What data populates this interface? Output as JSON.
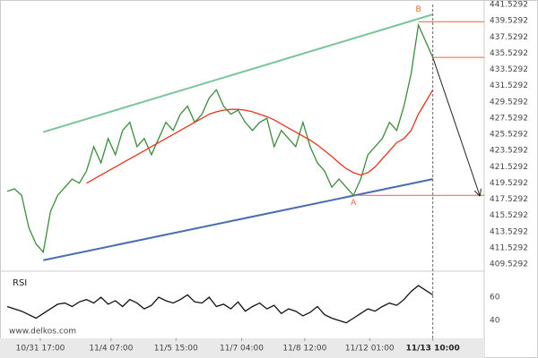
{
  "chart_data": [
    {
      "type": "line",
      "x": [
        0,
        1,
        2,
        3,
        4,
        5,
        6,
        7,
        8,
        9,
        10,
        11,
        12,
        13,
        14,
        15,
        16,
        17,
        18,
        19,
        20,
        21,
        22,
        23,
        24,
        25,
        26,
        27,
        28,
        29,
        30,
        31,
        32,
        33,
        34,
        35,
        36,
        37,
        38,
        39,
        40,
        41,
        42,
        43,
        44,
        45,
        46,
        47,
        48,
        49,
        50,
        51,
        52,
        53,
        54,
        55,
        56,
        57,
        58,
        59
      ],
      "series": [
        {
          "color": "#3b8c3b",
          "values": [
            418.5,
            418.8,
            418,
            414,
            412,
            411,
            416,
            418,
            419,
            420,
            419.5,
            421,
            424,
            422,
            425,
            423,
            426,
            427,
            424,
            425,
            423,
            425,
            427,
            426,
            428,
            429,
            427,
            428,
            430,
            431,
            429,
            428,
            428.5,
            427,
            426,
            427,
            427.5,
            424,
            426,
            425,
            424,
            427,
            424,
            422,
            421,
            419,
            420,
            419,
            418,
            420,
            423,
            424,
            425,
            427,
            426,
            429,
            433,
            439,
            437,
            435
          ]
        },
        {
          "color": "#e8341c",
          "values": [
            null,
            null,
            null,
            null,
            null,
            null,
            null,
            null,
            null,
            null,
            null,
            419.5,
            420,
            420.5,
            421,
            421.5,
            422,
            422.5,
            423,
            423.5,
            424,
            424.5,
            425,
            425.5,
            426,
            426.5,
            427,
            427.5,
            428,
            428.3,
            428.5,
            428.6,
            428.6,
            428.5,
            428.3,
            428,
            427.7,
            427.3,
            426.8,
            426.3,
            425.8,
            425.3,
            424.8,
            424.2,
            423.5,
            422.8,
            422,
            421.3,
            420.8,
            420.5,
            420.8,
            421.5,
            422.5,
            423.5,
            424.5,
            425,
            426,
            428,
            429.5,
            431
          ]
        }
      ],
      "trend_lines": [
        {
          "color": "#7cc49a",
          "x": [
            5,
            59
          ],
          "y": [
            425.8,
            440.3
          ]
        },
        {
          "color": "#4a6cb0",
          "x": [
            5,
            59
          ],
          "y": [
            410,
            420
          ]
        }
      ],
      "levels": [
        {
          "color": "#e8643c",
          "x": 57,
          "y": 439.4
        },
        {
          "color": "#e8643c",
          "x": 59,
          "y": 435
        },
        {
          "color": "#e8643c",
          "x": 48,
          "y": 418
        }
      ],
      "arrow": {
        "x": [
          59,
          65.5
        ],
        "y": [
          435,
          418
        ]
      },
      "annotations": [
        {
          "text": "A",
          "x": 48,
          "y": 417.1
        },
        {
          "text": "B",
          "x": 57,
          "y": 440.9
        }
      ],
      "xlim": [
        -0.375,
        66.125
      ],
      "ylim": [
        409.5292,
        441.5292
      ],
      "yticks": [
        441.5292,
        439.5292,
        437.5292,
        435.5292,
        433.5292,
        431.5292,
        429.5292,
        427.5292,
        425.5292,
        423.5292,
        421.5292,
        419.5292,
        417.5292,
        415.5292,
        413.5292,
        411.5292,
        409.5292
      ],
      "source": "www.delkos.com"
    },
    {
      "type": "line",
      "title": "RSI",
      "x": [
        0,
        1,
        2,
        3,
        4,
        5,
        6,
        7,
        8,
        9,
        10,
        11,
        12,
        13,
        14,
        15,
        16,
        17,
        18,
        19,
        20,
        21,
        22,
        23,
        24,
        25,
        26,
        27,
        28,
        29,
        30,
        31,
        32,
        33,
        34,
        35,
        36,
        37,
        38,
        39,
        40,
        41,
        42,
        43,
        44,
        45,
        46,
        47,
        48,
        49,
        50,
        51,
        52,
        53,
        54,
        55,
        56,
        57,
        58,
        59
      ],
      "series": [
        {
          "color": "#111111",
          "values": [
            52,
            50,
            48,
            45,
            42,
            46,
            50,
            54,
            55,
            52,
            56,
            58,
            55,
            60,
            54,
            57,
            52,
            58,
            55,
            50,
            53,
            60,
            57,
            55,
            58,
            62,
            56,
            55,
            60,
            52,
            54,
            50,
            56,
            48,
            52,
            55,
            50,
            53,
            46,
            50,
            48,
            44,
            47,
            52,
            45,
            42,
            40,
            38,
            42,
            46,
            50,
            48,
            52,
            55,
            53,
            58,
            65,
            70,
            66,
            62
          ]
        }
      ],
      "xlim": [
        -0.375,
        66.125
      ],
      "ylim": [
        27,
        77
      ],
      "yticks": [
        60,
        40
      ],
      "xticks": [
        {
          "value": 4.6,
          "label": "10/31 17:00"
        },
        {
          "value": 14.4,
          "label": "11/4 07:00"
        },
        {
          "value": 23.4,
          "label": "11/5 15:00"
        },
        {
          "value": 32.5,
          "label": "11/7 04:00"
        },
        {
          "value": 41.25,
          "label": "11/8 12:00"
        },
        {
          "value": 50.25,
          "label": "11/12 01:00"
        },
        {
          "value": 59,
          "label": "11/13 10:00"
        }
      ]
    }
  ]
}
